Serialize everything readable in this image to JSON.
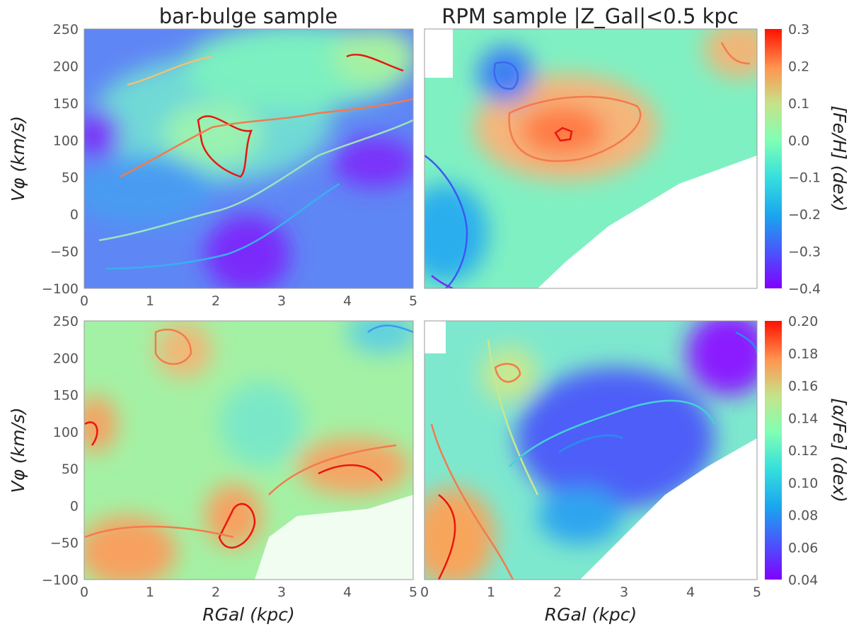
{
  "figure": {
    "titles": [
      "bar-bulge sample",
      "RPM sample |Z_Gal|<0.5 kpc"
    ]
  },
  "chart_data": [
    {
      "type": "heatmap",
      "title": "bar-bulge sample",
      "xlabel": "",
      "ylabel": "Vφ (km/s)",
      "xlim": [
        0,
        5
      ],
      "ylim": [
        -100,
        250
      ],
      "x_ticks": [
        "0",
        "1",
        "2",
        "3",
        "4",
        "5"
      ],
      "y_ticks": [
        "−100",
        "−50",
        "0",
        "50",
        "100",
        "150",
        "200",
        "250"
      ],
      "quantity": "[Fe/H]",
      "colormap": "rainbow",
      "color_range": [
        -0.4,
        0.3
      ],
      "features": [
        {
          "x": 0.1,
          "y": 100,
          "value": -0.4
        },
        {
          "x": 2.4,
          "y": -60,
          "value": -0.4
        },
        {
          "x": 4.3,
          "y": 60,
          "value": -0.4
        },
        {
          "x": 2.0,
          "y": 100,
          "value": 0.05
        },
        {
          "x": 4.5,
          "y": 210,
          "value": 0.2
        },
        {
          "x": 3.5,
          "y": 200,
          "value": -0.05
        }
      ]
    },
    {
      "type": "heatmap",
      "title": "RPM sample |Z_Gal|<0.5 kpc",
      "xlabel": "",
      "ylabel": "",
      "xlim": [
        0,
        5
      ],
      "ylim": [
        -100,
        250
      ],
      "quantity": "[Fe/H]",
      "colormap": "rainbow",
      "color_range": [
        -0.4,
        0.3
      ],
      "colorbar": {
        "label": "[Fe/H] (dex)",
        "ticks": [
          "0.3",
          "0.2",
          "0.1",
          "0.0",
          "−0.1",
          "−0.2",
          "−0.3",
          "−0.4"
        ]
      },
      "features": [
        {
          "x": 2.1,
          "y": 85,
          "value": 0.2
        },
        {
          "x": 1.15,
          "y": 190,
          "value": -0.3
        },
        {
          "x": 0.3,
          "y": -60,
          "value": -0.25
        },
        {
          "x": 4.8,
          "y": 220,
          "value": 0.1
        }
      ]
    },
    {
      "type": "heatmap",
      "title": "",
      "xlabel": "RGal (kpc)",
      "ylabel": "Vφ (km/s)",
      "xlim": [
        0,
        5
      ],
      "ylim": [
        -100,
        250
      ],
      "x_ticks": [
        "0",
        "1",
        "2",
        "3",
        "4",
        "5"
      ],
      "y_ticks": [
        "−100",
        "−50",
        "0",
        "50",
        "100",
        "150",
        "200",
        "250"
      ],
      "quantity": "[α/Fe]",
      "colormap": "rainbow",
      "color_range": [
        0.04,
        0.2
      ],
      "features": [
        {
          "x": 0.1,
          "y": 95,
          "value": 0.17
        },
        {
          "x": 0.6,
          "y": -50,
          "value": 0.17
        },
        {
          "x": 2.3,
          "y": -40,
          "value": 0.17
        },
        {
          "x": 4.2,
          "y": 60,
          "value": 0.17
        },
        {
          "x": 1.7,
          "y": 210,
          "value": 0.16
        },
        {
          "x": 4.6,
          "y": 230,
          "value": 0.1
        }
      ]
    },
    {
      "type": "heatmap",
      "title": "",
      "xlabel": "RGal (kpc)",
      "ylabel": "",
      "xlim": [
        0,
        5
      ],
      "ylim": [
        -100,
        250
      ],
      "x_ticks": [
        "0",
        "1",
        "2",
        "3",
        "4",
        "5"
      ],
      "quantity": "[α/Fe]",
      "colormap": "rainbow",
      "color_range": [
        0.04,
        0.2
      ],
      "colorbar": {
        "label": "[α/Fe] (dex)",
        "ticks": [
          "0.20",
          "0.18",
          "0.16",
          "0.14",
          "0.12",
          "0.10",
          "0.08",
          "0.06",
          "0.04"
        ]
      },
      "features": [
        {
          "x": 0.4,
          "y": -60,
          "value": 0.18
        },
        {
          "x": 1.1,
          "y": 175,
          "value": 0.17
        },
        {
          "x": 2.4,
          "y": 80,
          "value": 0.07
        },
        {
          "x": 4.6,
          "y": 220,
          "value": 0.05
        }
      ]
    }
  ]
}
